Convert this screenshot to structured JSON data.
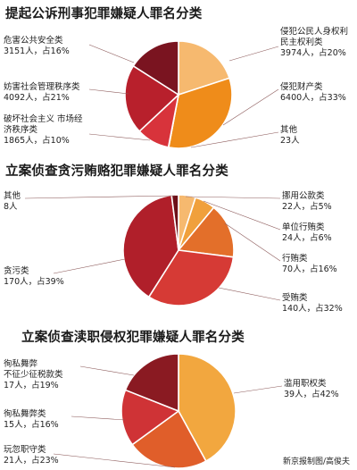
{
  "chart_data": [
    {
      "type": "pie",
      "title": "提起公诉刑事犯罪嫌疑人罪名分类",
      "slices": [
        {
          "name": "侵犯公民人身权利 民主权利类",
          "label": "3974人，占20%",
          "count": 3974,
          "percent": 20,
          "color": "#f6b96f"
        },
        {
          "name": "侵犯财产类",
          "label": "6400人，占33%",
          "count": 6400,
          "percent": 33,
          "color": "#ef8c1a"
        },
        {
          "name": "其他",
          "label": "23人",
          "count": 23,
          "percent": 0.1,
          "color": "#e0584a"
        },
        {
          "name": "破坏社会主义 市场经济秩序类",
          "label": "1865人，占10%",
          "count": 1865,
          "percent": 10,
          "color": "#d8333b"
        },
        {
          "name": "妨害社会管理秩序类",
          "label": "4092人，占21%",
          "count": 4092,
          "percent": 21,
          "color": "#b8202c"
        },
        {
          "name": "危害公共安全类",
          "label": "3151人，占16%",
          "count": 3151,
          "percent": 16,
          "color": "#7a1420"
        }
      ]
    },
    {
      "type": "pie",
      "title": "立案侦查贪污贿赂犯罪嫌疑人罪名分类",
      "slices": [
        {
          "name": "挪用公款类",
          "label": "22人，占5%",
          "count": 22,
          "percent": 5,
          "color": "#f6b96f"
        },
        {
          "name": "单位行贿类",
          "label": "24人，占6%",
          "count": 24,
          "percent": 6,
          "color": "#f0a03c"
        },
        {
          "name": "行贿类",
          "label": "70人，占16%",
          "count": 70,
          "percent": 16,
          "color": "#e36f2a"
        },
        {
          "name": "受贿类",
          "label": "140人，占32%",
          "count": 140,
          "percent": 32,
          "color": "#d63a35"
        },
        {
          "name": "贪污类",
          "label": "170人，占39%",
          "count": 170,
          "percent": 39,
          "color": "#b01f2a"
        },
        {
          "name": "其他",
          "label": "8人",
          "count": 8,
          "percent": 2,
          "color": "#6e1018"
        }
      ]
    },
    {
      "type": "pie",
      "title": "立案侦查渎职侵权犯罪嫌疑人罪名分类",
      "slices": [
        {
          "name": "滥用职权类",
          "label": "39人，占42%",
          "count": 39,
          "percent": 42,
          "color": "#f2a73f"
        },
        {
          "name": "玩忽职守类",
          "label": "21人，占23%",
          "count": 21,
          "percent": 23,
          "color": "#e05e2a"
        },
        {
          "name": "徇私舞弊类",
          "label": "15人，占16%",
          "count": 15,
          "percent": 16,
          "color": "#cf3336"
        },
        {
          "name": "徇私舞弊 不征少征税款类",
          "label": "17人，占19%",
          "count": 17,
          "percent": 19,
          "color": "#8a1a22"
        }
      ]
    }
  ],
  "credit": "新京报制图/高俊夫"
}
